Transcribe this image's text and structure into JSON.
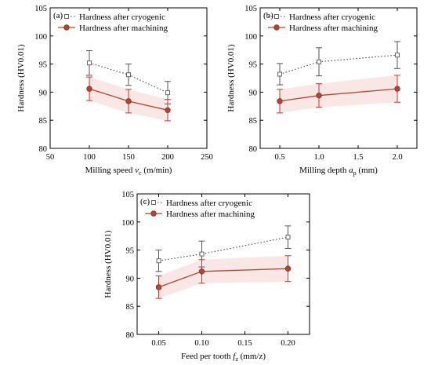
{
  "colors": {
    "cryogenic": "#7a7a7a",
    "machining": "#b5452f",
    "machining_band": "#f3d4d0",
    "error_cryogenic": "#555555",
    "error_machining": "#c0392b",
    "axis": "#000000"
  },
  "chart_data": [
    {
      "type": "line",
      "panel_label": "(a)",
      "xlabel_prefix": "Milling speed ",
      "xlabel_var": "v",
      "xlabel_sub": "c",
      "xlabel_suffix": " (m/min)",
      "ylabel": "Hardness (HV0.01)",
      "xlim": [
        50,
        250
      ],
      "ylim": [
        80,
        105
      ],
      "x_ticks": [
        50,
        100,
        150,
        200,
        250
      ],
      "x_tick_labels": [
        "50",
        "100",
        "150",
        "200",
        "250"
      ],
      "y_ticks": [
        80,
        85,
        90,
        95,
        100,
        105
      ],
      "y_tick_labels": [
        "80",
        "85",
        "90",
        "95",
        "100",
        "105"
      ],
      "x": [
        100,
        150,
        200
      ],
      "legend_position": "top-left",
      "series": [
        {
          "name": "Hardness after cryogenic",
          "values": [
            95.2,
            93.1,
            89.9
          ],
          "errors": [
            2.2,
            1.9,
            2.0
          ],
          "style": "dotted-square"
        },
        {
          "name": "Hardness after machining",
          "values": [
            90.6,
            88.4,
            86.8
          ],
          "errors": [
            2.1,
            2.1,
            1.9
          ],
          "style": "solid-circle"
        }
      ]
    },
    {
      "type": "line",
      "panel_label": "(b)",
      "xlabel_prefix": "Milling depth ",
      "xlabel_var": "a",
      "xlabel_sub": "p",
      "xlabel_suffix": " (mm)",
      "ylabel": "Hardness (HV0.01)",
      "xlim": [
        0.25,
        2.25
      ],
      "ylim": [
        80,
        105
      ],
      "x_ticks": [
        0.5,
        1.0,
        1.5,
        2.0
      ],
      "x_tick_labels": [
        "0.5",
        "1.0",
        "1.5",
        "2.0"
      ],
      "y_ticks": [
        80,
        85,
        90,
        95,
        100,
        105
      ],
      "y_tick_labels": [
        "80",
        "85",
        "90",
        "95",
        "100",
        "105"
      ],
      "x": [
        0.5,
        1.0,
        2.0
      ],
      "legend_position": "top-left",
      "series": [
        {
          "name": "Hardness after cryogenic",
          "values": [
            93.2,
            95.4,
            96.6
          ],
          "errors": [
            1.9,
            2.5,
            2.4
          ],
          "style": "dotted-square"
        },
        {
          "name": "Hardness after machining",
          "values": [
            88.4,
            89.4,
            90.6
          ],
          "errors": [
            2.1,
            2.1,
            2.4
          ],
          "style": "solid-circle"
        }
      ]
    },
    {
      "type": "line",
      "panel_label": "(c)",
      "xlabel_prefix": "Feed per tooth ",
      "xlabel_var": "f",
      "xlabel_sub": "z",
      "xlabel_suffix": " (mm/z)",
      "ylabel": "Hardness (HV0.01)",
      "xlim": [
        0.025,
        0.225
      ],
      "ylim": [
        80,
        105
      ],
      "x_ticks": [
        0.05,
        0.1,
        0.15,
        0.2
      ],
      "x_tick_labels": [
        "0.05",
        "0.10",
        "0.15",
        "0.20"
      ],
      "y_ticks": [
        80,
        85,
        90,
        95,
        100,
        105
      ],
      "y_tick_labels": [
        "80",
        "85",
        "90",
        "95",
        "100",
        "105"
      ],
      "x": [
        0.05,
        0.1,
        0.2
      ],
      "legend_position": "top-left",
      "series": [
        {
          "name": "Hardness after cryogenic",
          "values": [
            93.1,
            94.3,
            97.3
          ],
          "errors": [
            1.9,
            2.3,
            2.0
          ],
          "style": "dotted-square"
        },
        {
          "name": "Hardness after machining",
          "values": [
            88.4,
            91.2,
            91.7
          ],
          "errors": [
            2.0,
            2.1,
            2.3
          ],
          "style": "solid-circle"
        }
      ]
    }
  ]
}
